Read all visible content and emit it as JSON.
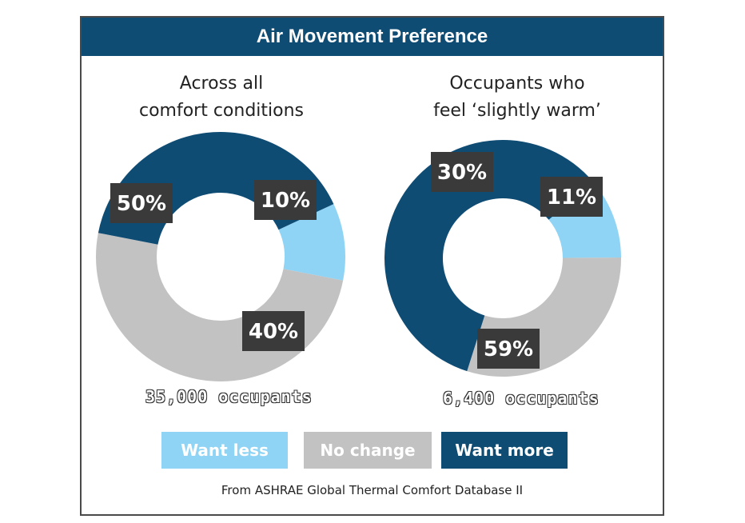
{
  "title": "Air Movement Preference",
  "colors": {
    "want_less": "#8fd3f5",
    "no_change": "#c2c2c2",
    "want_more": "#0f4c74",
    "label_box": "#3a3a3a"
  },
  "chart_data": [
    {
      "type": "pie",
      "subtitle": "Across all\ncomfort conditions",
      "categories": [
        "Want less",
        "No change",
        "Want more"
      ],
      "values": [
        10,
        50,
        40
      ],
      "labels": [
        "10%",
        "50%",
        "40%"
      ],
      "occupants": "35,000 occupants"
    },
    {
      "type": "pie",
      "subtitle": "Occupants who\nfeel ‘slightly warm’",
      "categories": [
        "Want less",
        "No change",
        "Want more"
      ],
      "values": [
        11,
        30,
        59
      ],
      "labels": [
        "11%",
        "30%",
        "59%"
      ],
      "occupants": "6,400 occupants"
    }
  ],
  "legend": {
    "want_less": "Want less",
    "no_change": "No change",
    "want_more": "Want more"
  },
  "source": "From ASHRAE Global Thermal Comfort Database II"
}
